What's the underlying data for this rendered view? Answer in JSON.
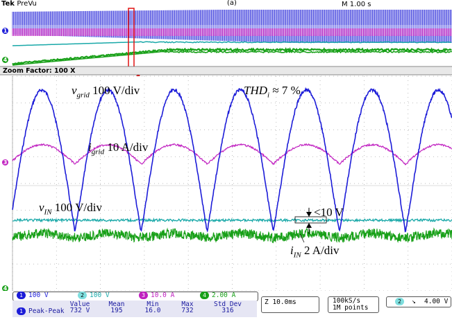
{
  "header": {
    "brand": "Tek",
    "mode": "PreVu",
    "timebase": "M 1.00 s",
    "figure_label": "(a)"
  },
  "zoom_bar": {
    "label": "Zoom Factor: 100 X"
  },
  "annotations": {
    "vgrid": {
      "sym": "v",
      "sub": "grid",
      "text": " 100 V/div"
    },
    "igrid": {
      "sym": "i",
      "sub": "grid",
      "text": " 10 A/div"
    },
    "vin": {
      "sym": "v",
      "sub": "IN",
      "text": " 100 V/div"
    },
    "iin": {
      "sym": "i",
      "sub": "IN",
      "text": " 2 A/div"
    },
    "thd": {
      "sym": "THD",
      "sub": "i",
      "text": " ≈ 7 %"
    },
    "ripple": "<10 V"
  },
  "channels": [
    {
      "num": "1",
      "scale": "100 V",
      "color": "#1c1cd8"
    },
    {
      "num": "2",
      "scale": "100 V",
      "color": "#18a8a8"
    },
    {
      "num": "3",
      "scale": "10.0 A",
      "color": "#c020c0"
    },
    {
      "num": "4",
      "scale": "2.00 A",
      "color": "#18a018"
    }
  ],
  "measurement": {
    "source": "1",
    "name": "Peak-Peak",
    "headers": [
      "Value",
      "Mean",
      "Min",
      "Max",
      "Std Dev"
    ],
    "values": [
      "732 V",
      "195",
      "16.0",
      "732",
      "316"
    ]
  },
  "zoom_time": "Z 10.0ms",
  "acquisition": {
    "rate": "100kS/s",
    "points": "1M points"
  },
  "trigger": {
    "channel": "2",
    "slope": "↘",
    "level": "4.00 V"
  },
  "colors": {
    "ch1": "#1c1cd8",
    "ch2": "#18a8a8",
    "ch3": "#c020c0",
    "ch4": "#18a018",
    "zoom_box": "#e01010"
  }
}
